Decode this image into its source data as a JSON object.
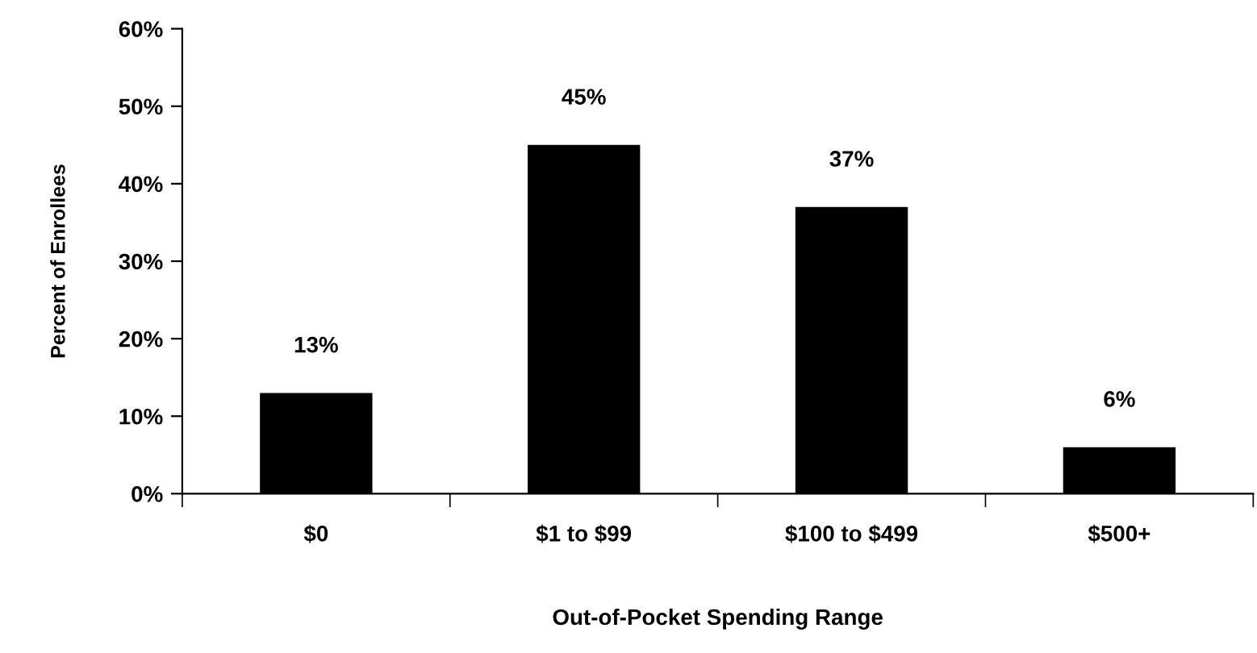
{
  "chart_data": {
    "type": "bar",
    "xlabel": "Out-of-Pocket Spending Range",
    "ylabel": "Percent of Enrollees",
    "categories": [
      "$0",
      "$1 to $99",
      "$100 to $499",
      "$500+"
    ],
    "values": [
      13,
      45,
      37,
      6
    ],
    "color": "#000000",
    "value_labels": [
      "13%",
      "45%",
      "37%",
      "6%"
    ],
    "ylim": [
      0,
      60
    ],
    "yticks": [
      {
        "value": 0,
        "label": "0%"
      },
      {
        "value": 10,
        "label": "10%"
      },
      {
        "value": 20,
        "label": "20%"
      },
      {
        "value": 30,
        "label": "30%"
      },
      {
        "value": 40,
        "label": "40%"
      },
      {
        "value": 50,
        "label": "50%"
      },
      {
        "value": 60,
        "label": "60%"
      }
    ],
    "grid": false,
    "legend": false
  }
}
